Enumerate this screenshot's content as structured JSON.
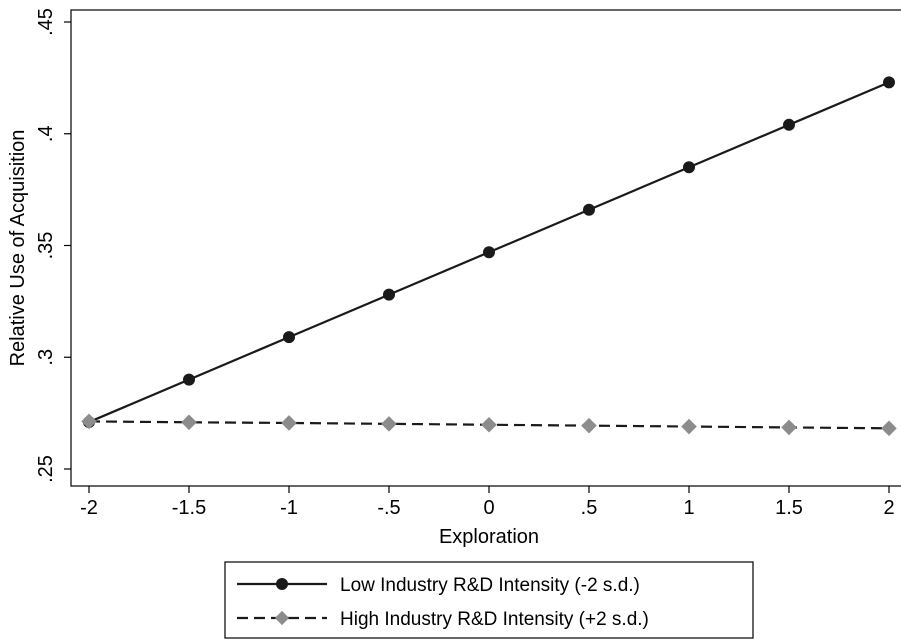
{
  "chart_data": {
    "type": "line",
    "title": "",
    "xlabel": "Exploration",
    "ylabel": "Relative Use of Acquisition",
    "xlim": [
      -2,
      2
    ],
    "ylim": [
      0.25,
      0.45
    ],
    "grid": false,
    "legend_position": "bottom-center",
    "x": [
      -2,
      -1.5,
      -1,
      -0.5,
      0,
      0.5,
      1,
      1.5,
      2
    ],
    "xtick_values": [
      -2,
      -1.5,
      -1,
      -0.5,
      0,
      0.5,
      1,
      1.5,
      2
    ],
    "xtick_labels": [
      "-2",
      "-1.5",
      "-1",
      "-.5",
      "0",
      ".5",
      "1",
      "1.5",
      "2"
    ],
    "ytick_values": [
      0.25,
      0.3,
      0.35,
      0.4,
      0.45
    ],
    "ytick_labels": [
      ".25",
      ".3",
      ".35",
      ".4",
      ".45"
    ],
    "series": [
      {
        "name": "Low Industry R&D Intensity (-2 s.d.)",
        "color": "#1a1a1a",
        "line_style": "solid",
        "marker": "circle",
        "values": [
          0.271,
          0.29,
          0.309,
          0.328,
          0.347,
          0.366,
          0.385,
          0.404,
          0.423
        ]
      },
      {
        "name": "High Industry R&D Intensity (+2 s.d.)",
        "color": "#8c8c8c",
        "line_style": "dashed",
        "marker": "diamond",
        "values": [
          0.2713,
          0.2709,
          0.2706,
          0.2702,
          0.2698,
          0.2694,
          0.269,
          0.2686,
          0.2682
        ]
      }
    ]
  }
}
